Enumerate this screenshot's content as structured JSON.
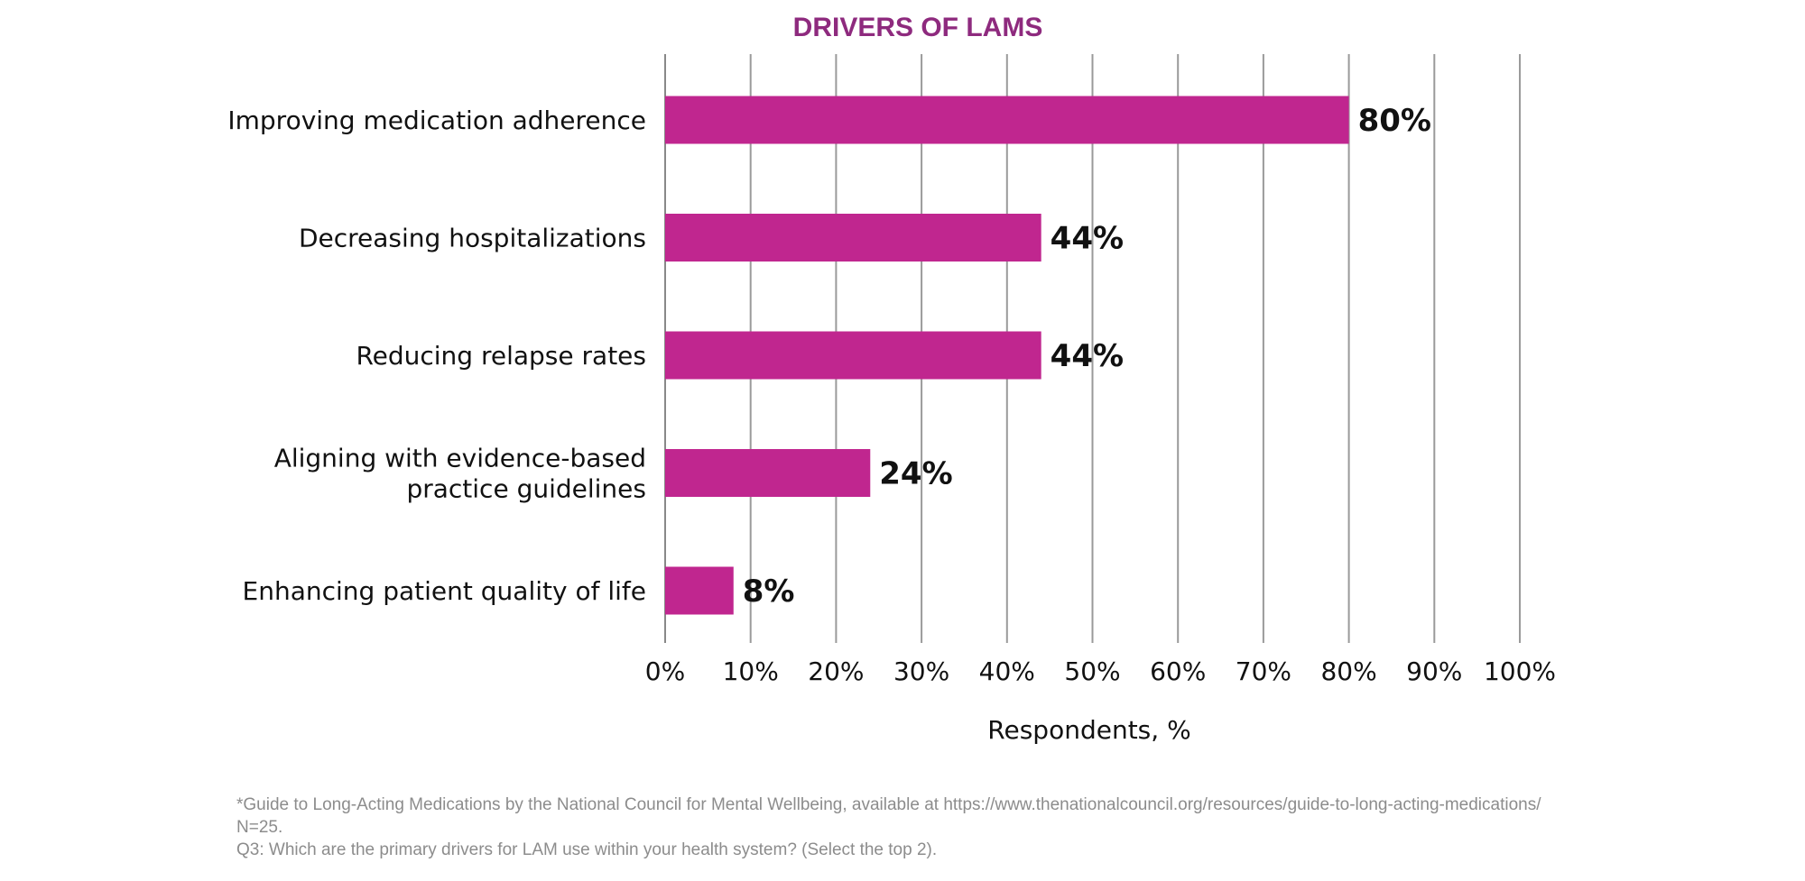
{
  "chart_data": {
    "type": "bar",
    "orientation": "horizontal",
    "title": "DRIVERS OF LAMS",
    "categories": [
      [
        "Improving medication adherence"
      ],
      [
        "Decreasing hospitalizations"
      ],
      [
        "Reducing relapse rates"
      ],
      [
        "Aligning with evidence-based",
        "practice guidelines"
      ],
      [
        "Enhancing patient quality of life"
      ]
    ],
    "values": [
      80,
      44,
      44,
      24,
      8
    ],
    "data_labels": [
      "80%",
      "44%",
      "44%",
      "24%",
      "8%"
    ],
    "xlim": [
      0,
      100
    ],
    "x_ticks": [
      0,
      10,
      20,
      30,
      40,
      50,
      60,
      70,
      80,
      90,
      100
    ],
    "x_tick_labels": [
      "0%",
      "10%",
      "20%",
      "30%",
      "40%",
      "50%",
      "60%",
      "70%",
      "80%",
      "90%",
      "100%"
    ],
    "xlabel": "Respondents, %",
    "ylabel": "",
    "grid": true,
    "bar_color": "#c0268f",
    "title_color": "#8e2a7e"
  },
  "footnotes": {
    "line1": "*Guide to Long-Acting Medications by the National Council for Mental Wellbeing, available at https://www.thenationalcouncil.org/resources/guide-to-long-acting-medications/",
    "line2": "N=25.",
    "line3": "Q3: Which are the primary drivers for LAM use within your health system? (Select the top 2)."
  }
}
